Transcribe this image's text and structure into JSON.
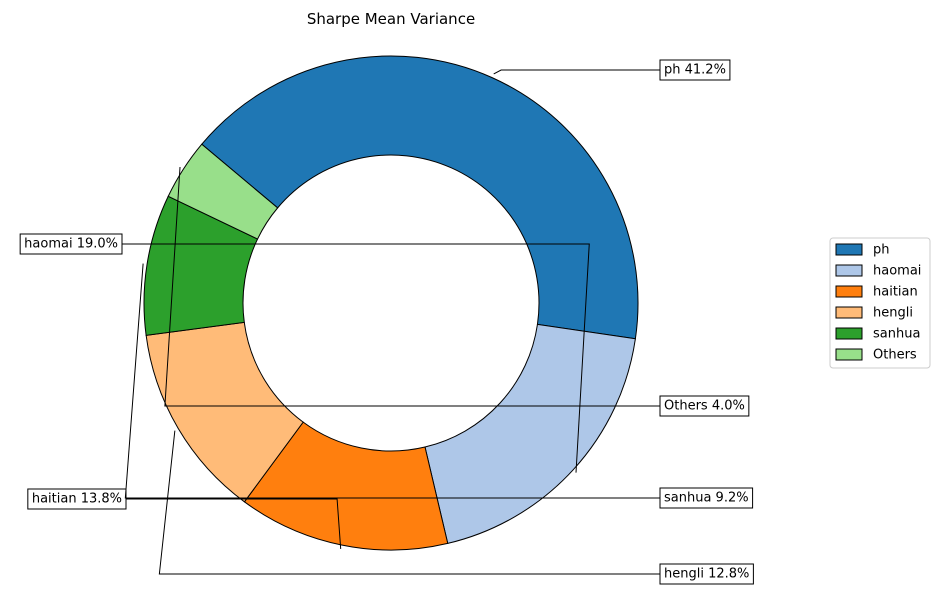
{
  "chart_data": {
    "type": "pie",
    "style": "donut",
    "title": "Sharpe Mean Variance",
    "slices": [
      {
        "label": "ph",
        "value": 41.2,
        "callout": "ph 41.2%",
        "color": "#1f77b4"
      },
      {
        "label": "haomai",
        "value": 19.0,
        "callout": "haomai 19.0%",
        "color": "#aec7e8"
      },
      {
        "label": "haitian",
        "value": 13.8,
        "callout": "haitian 13.8%",
        "color": "#ff7f0e"
      },
      {
        "label": "hengli",
        "value": 12.8,
        "callout": "hengli 12.8%",
        "color": "#ffbb78"
      },
      {
        "label": "sanhua",
        "value": 9.2,
        "callout": "sanhua 9.2%",
        "color": "#2ca02c"
      },
      {
        "label": "Others",
        "value": 4.0,
        "callout": "Others 4.0%",
        "color": "#98df8a"
      }
    ],
    "legend": {
      "placement": "right",
      "entries": [
        "ph",
        "haomai",
        "haitian",
        "hengli",
        "sanhua",
        "Others"
      ]
    }
  }
}
